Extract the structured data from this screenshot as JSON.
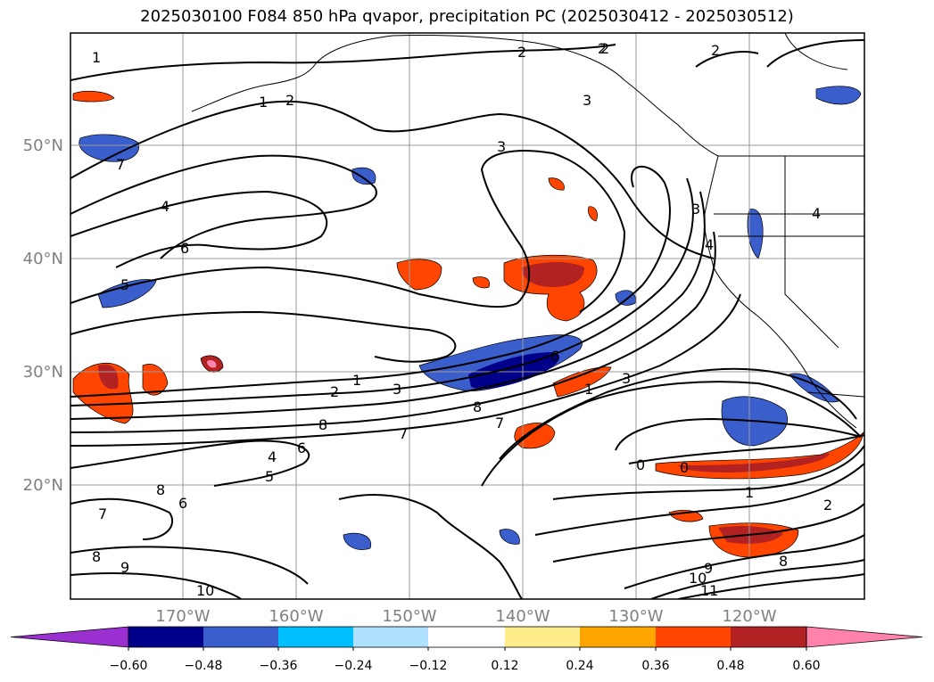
{
  "title": "2025030100 F084 850 hPa qvapor, precipitation PC (2025030412 - 2025030512)",
  "map": {
    "lat_labels": [
      "50°N",
      "40°N",
      "30°N",
      "20°N"
    ],
    "lon_labels": [
      "170°W",
      "160°W",
      "150°W",
      "140°W",
      "130°W",
      "120°W"
    ],
    "contour_labels": [
      "1",
      "2",
      "2",
      "2",
      "2",
      "3",
      "3",
      "3",
      "4",
      "4",
      "4",
      "5",
      "6",
      "7",
      "1",
      "2",
      "3",
      "8",
      "7",
      "6",
      "1",
      "2",
      "3",
      "4",
      "5",
      "6",
      "7",
      "8",
      "1",
      "0",
      "0",
      "1",
      "2",
      "8",
      "9",
      "10",
      "11",
      "8",
      "9",
      "10",
      "7",
      "6",
      "8"
    ]
  },
  "colorbar": {
    "tick_labels": [
      "−0.60",
      "−0.48",
      "−0.36",
      "−0.24",
      "−0.12",
      "0.12",
      "0.24",
      "0.36",
      "0.48",
      "0.60"
    ],
    "colors": [
      "#9b30d0",
      "#00008b",
      "#3a5fcd",
      "#00bfff",
      "#b0e2ff",
      "#ffffff",
      "#ffec8b",
      "#ffa500",
      "#ff4500",
      "#b22222",
      "#ff82ab"
    ]
  }
}
